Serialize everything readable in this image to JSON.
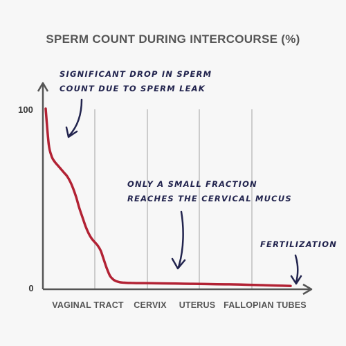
{
  "chart_data": {
    "type": "line",
    "title": "SPERM COUNT DURING INTERCOURSE (%)",
    "xlabel": "",
    "ylabel": "",
    "y_ticks": [
      "100",
      "0"
    ],
    "ylim": [
      0,
      100
    ],
    "categories": [
      "VAGINAL TRACT",
      "CERVIX",
      "UTERUS",
      "FALLOPIAN TUBES"
    ],
    "grid": "vertical lines at stage boundaries",
    "line_color": "#b22234",
    "x": [
      0,
      0.25,
      0.5,
      0.75,
      1.0,
      1.25,
      1.5,
      1.75,
      2.0,
      2.25,
      2.5,
      2.75,
      3.0,
      3.25,
      3.5,
      3.75,
      4.0,
      4.25,
      4.5,
      4.75,
      5.0,
      5.25,
      5.5,
      5.75,
      6.0,
      6.25,
      6.5,
      6.75,
      7.0,
      7.5,
      8.0,
      9.0,
      10.0,
      11.0,
      12.0,
      13.0,
      14.0,
      15.0,
      16.0,
      17.0,
      18.0,
      19.0,
      20.0
    ],
    "y": [
      100,
      80,
      73,
      70,
      68,
      66,
      64,
      62,
      59,
      55,
      50,
      44,
      39,
      34,
      30,
      27,
      25,
      23,
      20,
      15,
      10,
      6,
      4,
      3,
      2.5,
      2.2,
      2.1,
      2.0,
      2.0,
      1.9,
      1.9,
      1.8,
      1.7,
      1.6,
      1.5,
      1.4,
      1.3,
      1.2,
      1.1,
      0.9,
      0.7,
      0.5,
      0.3
    ],
    "annotations": [
      {
        "id": "leak",
        "lines": [
          "SIGNIFICANT DROP IN SPERM",
          "COUNT DUE TO SPERM LEAK"
        ]
      },
      {
        "id": "mucus",
        "lines": [
          "ONLY A SMALL FRACTION",
          "REACHES THE CERVICAL MUCUS"
        ]
      },
      {
        "id": "fert",
        "lines": [
          "FERTILIZATION"
        ]
      }
    ]
  },
  "colors": {
    "background": "#f7f7f7",
    "axis": "#555555",
    "grid": "#cccccc",
    "annotation": "#22244e"
  }
}
